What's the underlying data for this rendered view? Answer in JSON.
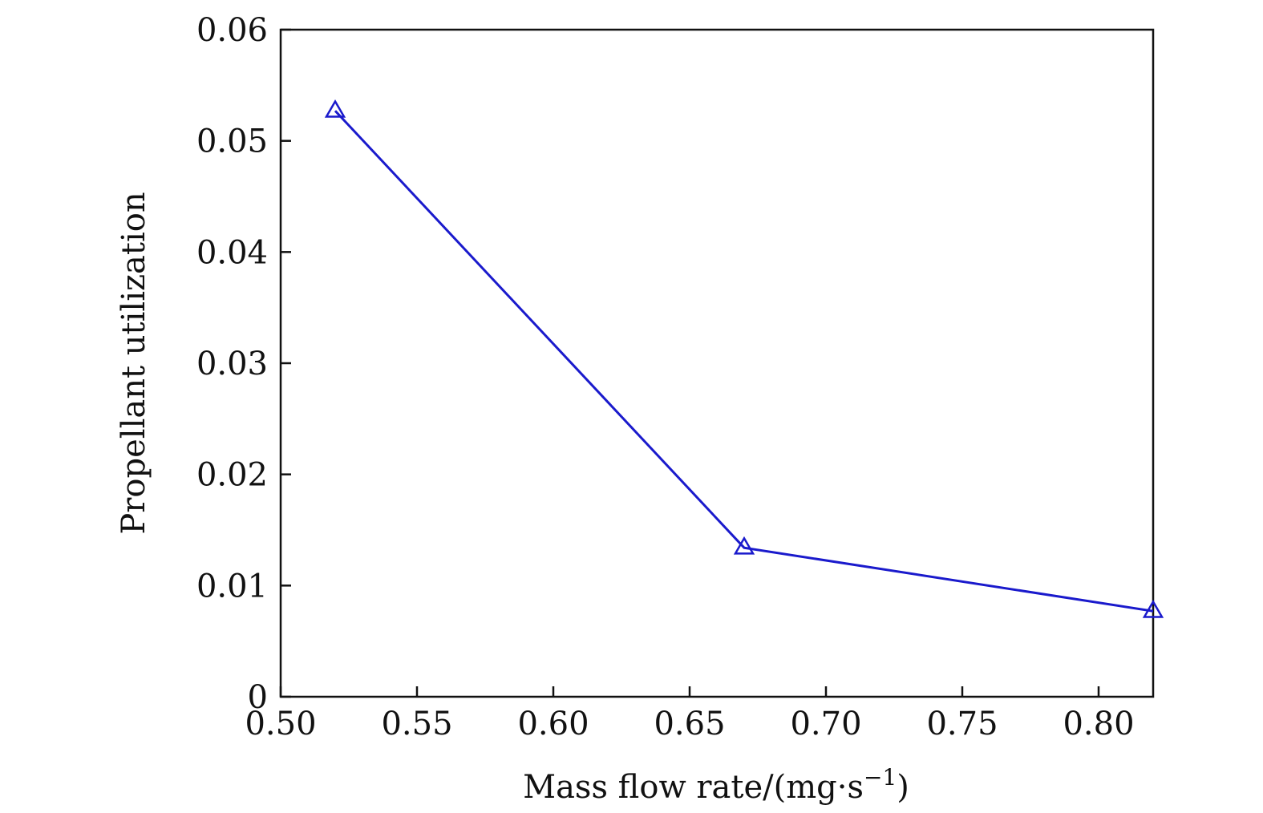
{
  "chart_data": {
    "type": "line",
    "title": "",
    "xlabel": "Mass flow rate/(mg·s",
    "xlabel_sup": "−1",
    "xlabel_close": ")",
    "ylabel": "Propellant utilization",
    "xlim": [
      0.5,
      0.82
    ],
    "ylim": [
      0,
      0.06
    ],
    "x_ticks": [
      0.5,
      0.55,
      0.6,
      0.65,
      0.7,
      0.75,
      0.8
    ],
    "x_tick_labels": [
      "0.50",
      "0.55",
      "0.60",
      "0.65",
      "0.70",
      "0.75",
      "0.80"
    ],
    "y_ticks": [
      0,
      0.01,
      0.02,
      0.03,
      0.04,
      0.05,
      0.06
    ],
    "y_tick_labels": [
      "0",
      "0.01",
      "0.02",
      "0.03",
      "0.04",
      "0.05",
      "0.06"
    ],
    "grid": false,
    "series": [
      {
        "marker": "triangle",
        "color": "#1a1acc",
        "x": [
          0.52,
          0.67,
          0.82
        ],
        "y": [
          0.0527,
          0.0134,
          0.0077
        ]
      }
    ]
  }
}
